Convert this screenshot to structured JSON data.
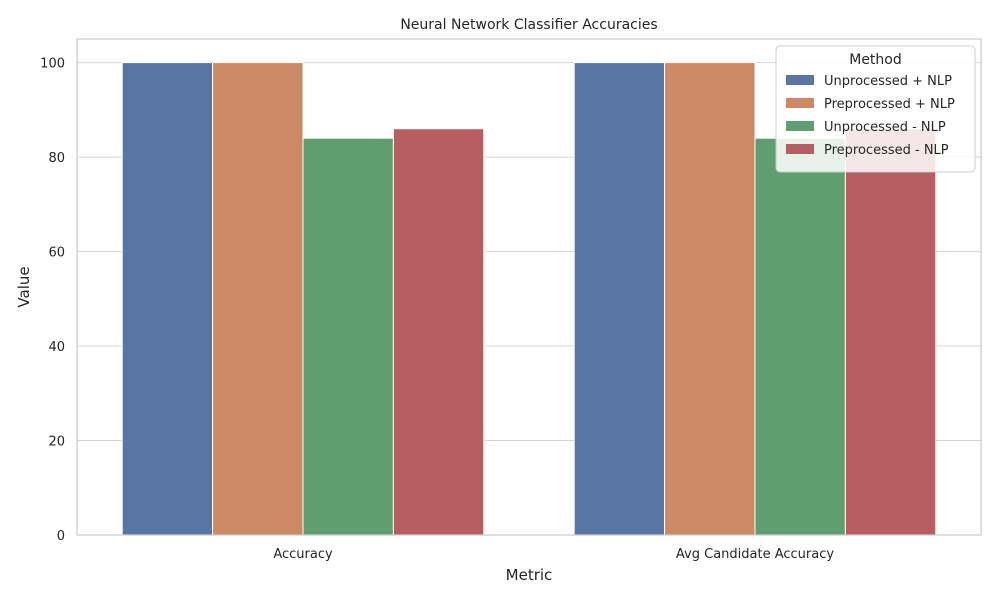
{
  "chart_data": {
    "type": "bar",
    "title": "Neural Network Classifier Accuracies",
    "xlabel": "Metric",
    "ylabel": "Value",
    "categories": [
      "Accuracy",
      "Avg Candidate Accuracy"
    ],
    "series": [
      {
        "name": "Unprocessed + NLP",
        "values": [
          100,
          100
        ],
        "color": "#5875a4"
      },
      {
        "name": "Preprocessed + NLP",
        "values": [
          100,
          100
        ],
        "color": "#cc8963"
      },
      {
        "name": "Unprocessed - NLP",
        "values": [
          84,
          84
        ],
        "color": "#5f9e6e"
      },
      {
        "name": "Preprocessed - NLP",
        "values": [
          86,
          86
        ],
        "color": "#b55d60"
      }
    ],
    "ylim": [
      0,
      105
    ],
    "yticks": [
      0,
      20,
      40,
      60,
      80,
      100
    ],
    "grid": true,
    "legend": {
      "title": "Method",
      "placement": "top-right"
    }
  }
}
